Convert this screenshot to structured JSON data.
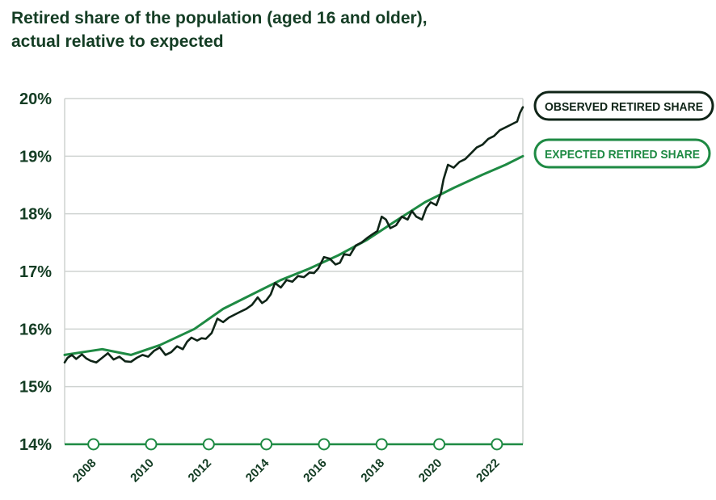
{
  "colors": {
    "observed": "#0f2417",
    "expected": "#1e8a43",
    "grid": "#cfd3d1",
    "axis": "#1e8a43",
    "text": "#143d24"
  },
  "chart_data": {
    "type": "line",
    "title": "Retired share of the population (aged 16 and older), actual relative to expected",
    "title_lines": [
      "Retired share of the population (aged 16 and older),",
      "actual relative to expected"
    ],
    "xlabel": "",
    "ylabel": "",
    "xlim": [
      2007.0,
      2022.9
    ],
    "ylim": [
      14,
      20
    ],
    "yticks": [
      14,
      15,
      16,
      17,
      18,
      19,
      20
    ],
    "ytick_labels": [
      "14%",
      "15%",
      "16%",
      "17%",
      "18%",
      "19%",
      "20%"
    ],
    "xticks": [
      2008,
      2010,
      2012,
      2014,
      2016,
      2018,
      2020,
      2022
    ],
    "xtick_labels": [
      "2008",
      "2010",
      "2012",
      "2014",
      "2016",
      "2018",
      "2020",
      "2022"
    ],
    "grid": true,
    "legend": "right",
    "series": [
      {
        "name": "OBSERVED RETIRED SHARE",
        "x": [
          2007.0,
          2007.1,
          2007.25,
          2007.4,
          2007.6,
          2007.75,
          2007.9,
          2008.1,
          2008.3,
          2008.5,
          2008.7,
          2008.9,
          2009.1,
          2009.3,
          2009.5,
          2009.7,
          2009.9,
          2010.1,
          2010.3,
          2010.5,
          2010.7,
          2010.9,
          2011.1,
          2011.25,
          2011.4,
          2011.6,
          2011.75,
          2011.9,
          2012.1,
          2012.3,
          2012.5,
          2012.7,
          2012.9,
          2013.1,
          2013.3,
          2013.5,
          2013.7,
          2013.85,
          2014.0,
          2014.15,
          2014.3,
          2014.5,
          2014.7,
          2014.9,
          2015.1,
          2015.3,
          2015.5,
          2015.65,
          2015.8,
          2016.0,
          2016.2,
          2016.4,
          2016.55,
          2016.7,
          2016.9,
          2017.1,
          2017.3,
          2017.5,
          2017.7,
          2017.85,
          2018.0,
          2018.15,
          2018.3,
          2018.5,
          2018.7,
          2018.9,
          2019.05,
          2019.2,
          2019.4,
          2019.55,
          2019.7,
          2019.9,
          2020.05,
          2020.15,
          2020.3,
          2020.5,
          2020.7,
          2020.9,
          2021.1,
          2021.3,
          2021.5,
          2021.7,
          2021.9,
          2022.1,
          2022.3,
          2022.5,
          2022.7,
          2022.8,
          2022.9
        ],
        "values": [
          15.42,
          15.5,
          15.55,
          15.48,
          15.56,
          15.49,
          15.45,
          15.42,
          15.5,
          15.58,
          15.47,
          15.52,
          15.44,
          15.43,
          15.5,
          15.55,
          15.52,
          15.62,
          15.68,
          15.55,
          15.6,
          15.7,
          15.65,
          15.78,
          15.85,
          15.8,
          15.84,
          15.83,
          15.93,
          16.18,
          16.12,
          16.2,
          16.25,
          16.3,
          16.35,
          16.42,
          16.55,
          16.45,
          16.5,
          16.6,
          16.8,
          16.72,
          16.85,
          16.82,
          16.92,
          16.9,
          16.98,
          16.97,
          17.05,
          17.25,
          17.22,
          17.12,
          17.15,
          17.3,
          17.28,
          17.45,
          17.5,
          17.58,
          17.65,
          17.7,
          17.95,
          17.9,
          17.75,
          17.8,
          17.95,
          17.9,
          18.05,
          17.95,
          17.9,
          18.1,
          18.2,
          18.15,
          18.35,
          18.6,
          18.85,
          18.8,
          18.9,
          18.95,
          19.05,
          19.15,
          19.2,
          19.3,
          19.35,
          19.45,
          19.5,
          19.55,
          19.6,
          19.75,
          19.85
        ]
      },
      {
        "name": "EXPECTED RETIRED SHARE",
        "x": [
          2007.0,
          2008.3,
          2009.3,
          2010.3,
          2011.5,
          2012.5,
          2013.5,
          2014.5,
          2015.5,
          2016.5,
          2017.5,
          2018.5,
          2019.5,
          2020.5,
          2021.5,
          2022.3,
          2022.9
        ],
        "values": [
          15.55,
          15.65,
          15.55,
          15.72,
          16.0,
          16.35,
          16.6,
          16.85,
          17.05,
          17.28,
          17.55,
          17.88,
          18.2,
          18.45,
          18.68,
          18.85,
          19.0
        ]
      }
    ],
    "series_labels": [
      "OBSERVED RETIRED SHARE",
      "EXPECTED RETIRED SHARE"
    ]
  }
}
